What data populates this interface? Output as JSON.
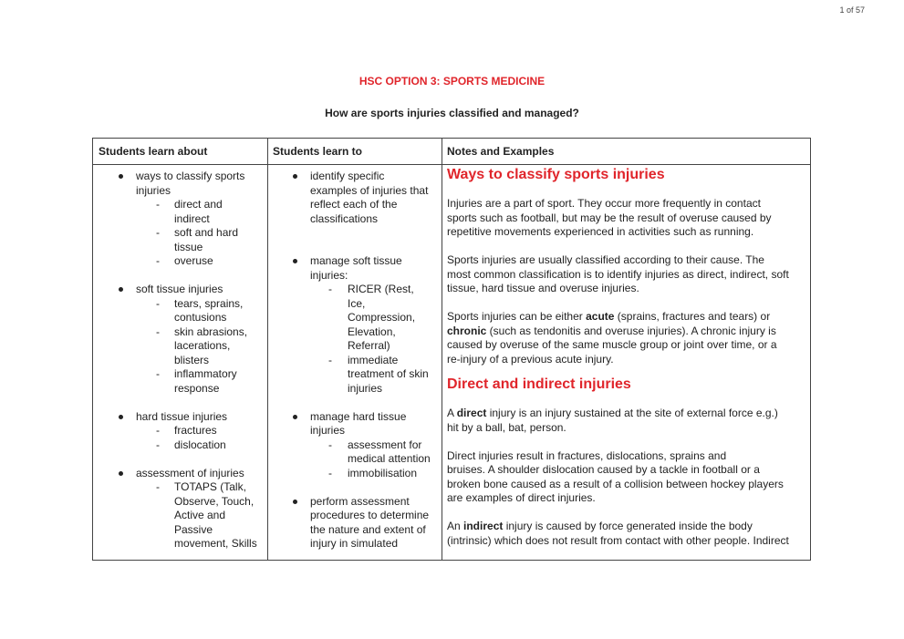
{
  "page_indicator": "1 of 57",
  "title": "HSC OPTION 3: SPORTS MEDICINE",
  "subtitle": "How are sports injuries classified and managed?",
  "accent_color": "#e0252b",
  "table": {
    "headers": [
      "Students learn about",
      "Students learn to",
      "Notes and Examples"
    ],
    "learn_about": [
      {
        "t": "b",
        "text": "ways to classify sports"
      },
      {
        "t": "c1",
        "text": "injuries"
      },
      {
        "t": "d",
        "text": "direct and"
      },
      {
        "t": "c2",
        "text": "indirect"
      },
      {
        "t": "d",
        "text": "soft and hard"
      },
      {
        "t": "c2",
        "text": "tissue"
      },
      {
        "t": "d",
        "text": "overuse"
      },
      {
        "t": "gap"
      },
      {
        "t": "b",
        "text": "soft tissue injuries"
      },
      {
        "t": "d",
        "text": "tears, sprains,"
      },
      {
        "t": "c2",
        "text": "contusions"
      },
      {
        "t": "d",
        "text": "skin abrasions,"
      },
      {
        "t": "c2",
        "text": "lacerations,"
      },
      {
        "t": "c2",
        "text": "blisters"
      },
      {
        "t": "d",
        "text": "inflammatory"
      },
      {
        "t": "c2",
        "text": "response"
      },
      {
        "t": "gap"
      },
      {
        "t": "b",
        "text": "hard tissue injuries"
      },
      {
        "t": "d",
        "text": "fractures"
      },
      {
        "t": "d",
        "text": "dislocation"
      },
      {
        "t": "gap"
      },
      {
        "t": "b",
        "text": "assessment of injuries"
      },
      {
        "t": "d",
        "text": "TOTAPS (Talk,"
      },
      {
        "t": "c2",
        "text": "Observe, Touch,"
      },
      {
        "t": "c2",
        "text": "Active and"
      },
      {
        "t": "c2",
        "text": "Passive"
      },
      {
        "t": "c2",
        "text": "movement, Skills"
      }
    ],
    "learn_to": [
      {
        "t": "b",
        "text": "identify specific"
      },
      {
        "t": "c1",
        "text": "examples of injuries that"
      },
      {
        "t": "c1",
        "text": "reflect each of the"
      },
      {
        "t": "c1",
        "text": "classifications"
      },
      {
        "t": "gap"
      },
      {
        "t": "gap"
      },
      {
        "t": "b",
        "text": "manage soft tissue"
      },
      {
        "t": "c1",
        "text": "injuries:"
      },
      {
        "t": "d",
        "text": "RICER (Rest,"
      },
      {
        "t": "c2",
        "text": "Ice,"
      },
      {
        "t": "c2",
        "text": "Compression,"
      },
      {
        "t": "c2",
        "text": "Elevation,"
      },
      {
        "t": "c2",
        "text": "Referral)"
      },
      {
        "t": "d",
        "text": "immediate"
      },
      {
        "t": "c2",
        "text": "treatment of skin"
      },
      {
        "t": "c2",
        "text": "injuries"
      },
      {
        "t": "gap"
      },
      {
        "t": "b",
        "text": "manage hard tissue"
      },
      {
        "t": "c1",
        "text": "injuries"
      },
      {
        "t": "d",
        "text": "assessment for"
      },
      {
        "t": "c2",
        "text": "medical attention"
      },
      {
        "t": "d",
        "text": "immobilisation"
      },
      {
        "t": "gap"
      },
      {
        "t": "b",
        "text": "perform assessment"
      },
      {
        "t": "c1",
        "text": "procedures to determine"
      },
      {
        "t": "c1",
        "text": "the nature and extent of"
      },
      {
        "t": "c1",
        "text": "injury in simulated"
      }
    ],
    "notes": [
      {
        "t": "h1",
        "text": "Ways to classify sports injuries"
      },
      {
        "t": "l",
        "seg": [
          {
            "text": "Injuries are a part of sport. They occur more frequently in contact"
          }
        ]
      },
      {
        "t": "l",
        "seg": [
          {
            "text": "sports such as football, but may be the result of overuse caused by"
          }
        ]
      },
      {
        "t": "l",
        "seg": [
          {
            "text": "repetitive movements experienced in activities such as running."
          }
        ]
      },
      {
        "t": "gap"
      },
      {
        "t": "l",
        "seg": [
          {
            "text": "Sports injuries are usually classified according to their cause. The"
          }
        ]
      },
      {
        "t": "l",
        "seg": [
          {
            "text": "most common classification is to identify injuries as direct, indirect, soft"
          }
        ]
      },
      {
        "t": "l",
        "seg": [
          {
            "text": "tissue, hard tissue and overuse injuries."
          }
        ]
      },
      {
        "t": "gap"
      },
      {
        "t": "l",
        "seg": [
          {
            "text": "Sports injuries can be either "
          },
          {
            "text": "acute",
            "bold": true
          },
          {
            "text": " (sprains, fractures and  tears) or"
          }
        ]
      },
      {
        "t": "l",
        "seg": [
          {
            "text": "chronic",
            "bold": true
          },
          {
            "text": " (such as tendonitis and overuse injuries).  A chronic injury is"
          }
        ]
      },
      {
        "t": "l",
        "seg": [
          {
            "text": "caused by overuse of the same muscle group or joint over time, or a"
          }
        ]
      },
      {
        "t": "l",
        "seg": [
          {
            "text": "re-injury of a previous acute injury."
          }
        ]
      },
      {
        "t": "h2",
        "text": "Direct and indirect injuries"
      },
      {
        "t": "l",
        "seg": [
          {
            "text": "A "
          },
          {
            "text": "direct",
            "bold": true
          },
          {
            "text": " injury is an injury sustained at the site of external force e.g.)"
          }
        ]
      },
      {
        "t": "l",
        "seg": [
          {
            "text": "hit by a ball, bat, person."
          }
        ]
      },
      {
        "t": "gap"
      },
      {
        "t": "l",
        "seg": [
          {
            "text": "Direct injuries result in fractures, dislocations, sprains and"
          }
        ]
      },
      {
        "t": "l",
        "seg": [
          {
            "text": "bruises. A shoulder dislocation caused by a tackle in football or a"
          }
        ]
      },
      {
        "t": "l",
        "seg": [
          {
            "text": "broken bone caused as a result of a collision between hockey players"
          }
        ]
      },
      {
        "t": "l",
        "seg": [
          {
            "text": "are examples of direct injuries."
          }
        ]
      },
      {
        "t": "gap"
      },
      {
        "t": "l",
        "seg": [
          {
            "text": "An "
          },
          {
            "text": "indirect",
            "bold": true
          },
          {
            "text": " injury is caused by force generated inside the body"
          }
        ]
      },
      {
        "t": "l",
        "seg": [
          {
            "text": "(intrinsic) which does not result from contact with other people. Indirect"
          }
        ]
      }
    ]
  }
}
